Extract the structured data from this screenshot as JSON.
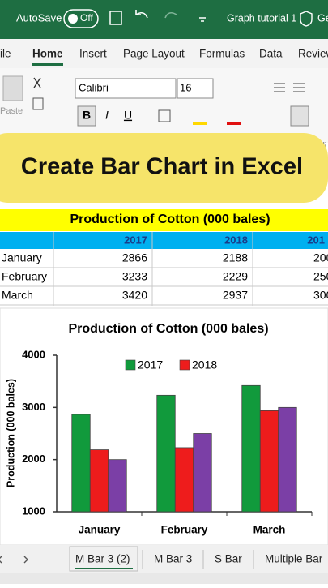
{
  "titlebar": {
    "autosave": "AutoSave",
    "toggle": "Off",
    "doc_title": "Graph tutorial 1",
    "user": "Ge"
  },
  "tabs": [
    "ile",
    "Home",
    "Insert",
    "Page Layout",
    "Formulas",
    "Data",
    "Review"
  ],
  "ribbon": {
    "font": "Calibri",
    "size": "16",
    "paste": "Paste",
    "bold": "B",
    "italic": "I",
    "underline": "U",
    "align": "Ali"
  },
  "banner": "Create Bar Chart in Excel",
  "table": {
    "title": "Production of Cotton (000 bales)",
    "header": [
      "2017",
      "2018",
      "201"
    ],
    "rows": [
      {
        "label": "January",
        "cells": [
          "2866",
          "2188",
          "200"
        ]
      },
      {
        "label": "February",
        "cells": [
          "3233",
          "2229",
          "250"
        ]
      },
      {
        "label": "March",
        "cells": [
          "3420",
          "2937",
          "300"
        ]
      }
    ]
  },
  "chart_data": {
    "type": "bar",
    "title": "Production of Cotton (000 bales)",
    "y_label": "Production (000 bales)",
    "categories": [
      "January",
      "February",
      "March"
    ],
    "series": [
      {
        "name": "2017",
        "color": "#119a3c",
        "values": [
          2866,
          3233,
          3420
        ]
      },
      {
        "name": "2018",
        "color": "#ee1c1c",
        "values": [
          2188,
          2229,
          2937
        ]
      },
      {
        "color": "#7b3fa6",
        "values": [
          2000,
          2500,
          3000
        ]
      }
    ],
    "ylim": [
      1000,
      4000
    ],
    "yticks": [
      1000,
      2000,
      3000,
      4000
    ],
    "grid": false,
    "legend": "top"
  },
  "sheet_tabs": [
    "M Bar 3 (2)",
    "M Bar 3",
    "S Bar",
    "Multiple Bar"
  ]
}
